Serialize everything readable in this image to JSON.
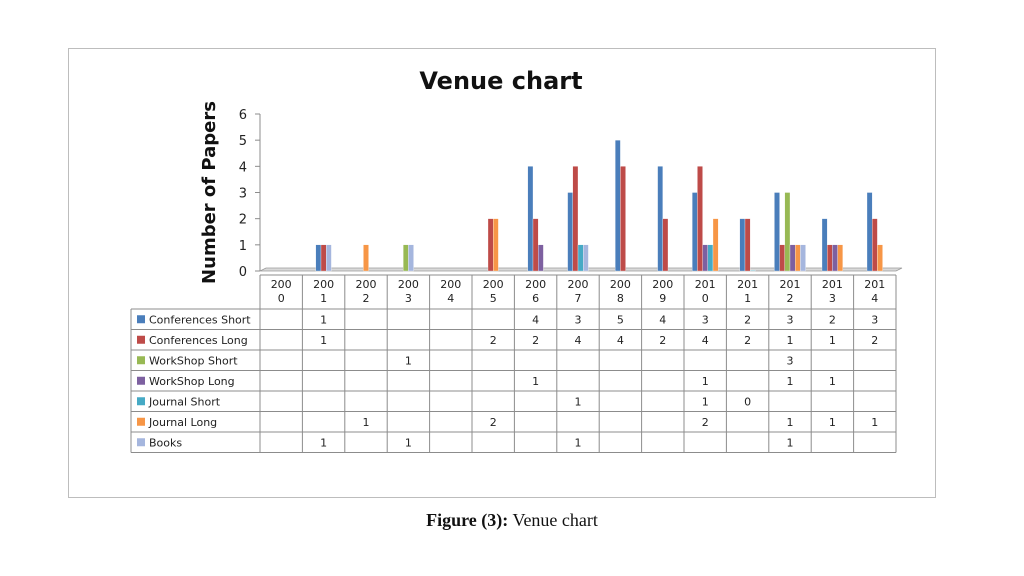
{
  "chart_data": {
    "type": "bar",
    "title": "Venue chart",
    "ylabel": "Number of Papers",
    "xlabel": "",
    "ylim": [
      0,
      6
    ],
    "yticks": [
      0,
      1,
      2,
      3,
      4,
      5,
      6
    ],
    "grid": false,
    "legend_placement": "table-below",
    "categories": [
      "2000",
      "2001",
      "2002",
      "2003",
      "2004",
      "2005",
      "2006",
      "2007",
      "2008",
      "2009",
      "2010",
      "2011",
      "2012",
      "2013",
      "2014"
    ],
    "category_labels": [
      [
        "200",
        "0"
      ],
      [
        "200",
        "1"
      ],
      [
        "200",
        "2"
      ],
      [
        "200",
        "3"
      ],
      [
        "200",
        "4"
      ],
      [
        "200",
        "5"
      ],
      [
        "200",
        "6"
      ],
      [
        "200",
        "7"
      ],
      [
        "200",
        "8"
      ],
      [
        "200",
        "9"
      ],
      [
        "201",
        "0"
      ],
      [
        "201",
        "1"
      ],
      [
        "201",
        "2"
      ],
      [
        "201",
        "3"
      ],
      [
        "201",
        "4"
      ]
    ],
    "series": [
      {
        "name": "Conferences Short",
        "color": "#4a7ebb",
        "values": [
          null,
          1,
          null,
          null,
          null,
          null,
          4,
          3,
          5,
          4,
          3,
          2,
          3,
          2,
          3
        ]
      },
      {
        "name": "Conferences Long",
        "color": "#be4b48",
        "values": [
          null,
          1,
          null,
          null,
          null,
          2,
          2,
          4,
          4,
          2,
          4,
          2,
          1,
          1,
          2
        ]
      },
      {
        "name": "WorkShop Short",
        "color": "#98b954",
        "values": [
          null,
          null,
          null,
          1,
          null,
          null,
          null,
          null,
          null,
          null,
          null,
          null,
          3,
          null,
          null
        ]
      },
      {
        "name": "WorkShop Long",
        "color": "#7d60a0",
        "values": [
          null,
          null,
          null,
          null,
          null,
          null,
          1,
          null,
          null,
          null,
          1,
          null,
          1,
          1,
          null
        ]
      },
      {
        "name": "Journal Short",
        "color": "#46aac5",
        "values": [
          null,
          null,
          null,
          null,
          null,
          null,
          null,
          1,
          null,
          null,
          1,
          0,
          null,
          null,
          null
        ]
      },
      {
        "name": "Journal Long",
        "color": "#f79646",
        "values": [
          null,
          null,
          1,
          null,
          null,
          2,
          null,
          null,
          null,
          null,
          2,
          null,
          1,
          1,
          1
        ]
      },
      {
        "name": "Books",
        "color": "#a5b6de",
        "values": [
          null,
          1,
          null,
          1,
          null,
          null,
          null,
          1,
          null,
          null,
          null,
          null,
          1,
          null,
          null
        ]
      }
    ]
  },
  "caption": {
    "label": "Figure (3):",
    "text": "Venue chart"
  }
}
